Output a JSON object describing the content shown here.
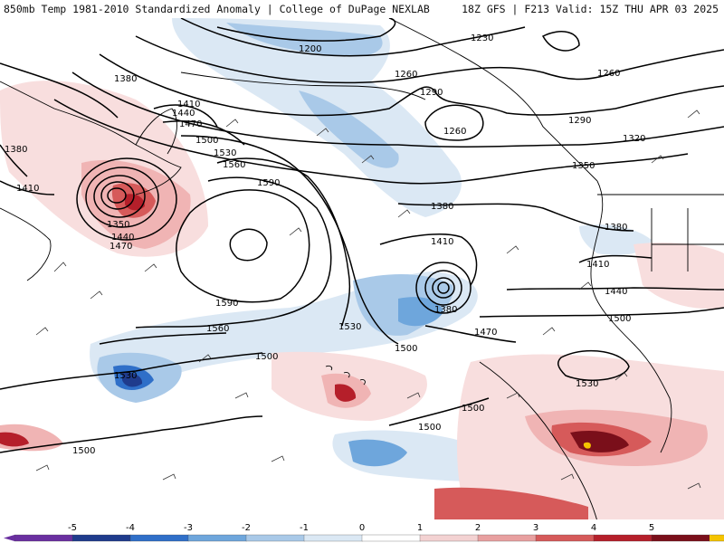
{
  "header": {
    "left_title": "850mb Temp 1981-2010 Standardized Anomaly | College of DuPage NEXLAB",
    "right_title": "18Z GFS | F213 Valid: 15Z THU APR 03 2025"
  },
  "contour_labels": {
    "l1200": "1200",
    "l1230": "1230",
    "l1260a": "1260",
    "l1260b": "1260",
    "l1260c": "1260",
    "l1290a": "1290",
    "l1290b": "1290",
    "l1320": "1320",
    "l1350": "1350",
    "l1380a": "1380",
    "l1380b": "1380",
    "l1380c": "1380",
    "l1380d": "1380",
    "l1380e": "1380",
    "l1410a": "1410",
    "l1410b": "1410",
    "l1410c": "1410",
    "l1410d": "1410",
    "l1440a": "1440",
    "l1440b": "1440",
    "l1440c": "1440",
    "l1470a": "1470",
    "l1470b": "1470",
    "l1470c": "1470",
    "l1500a": "1500",
    "l1500b": "1500",
    "l1500c": "1500",
    "l1500d": "1500",
    "l1500e": "1500",
    "l1500f": "1500",
    "l1500g": "1500",
    "l1530a": "1530",
    "l1530b": "1530",
    "l1530c": "1530",
    "l1530d": "1530",
    "l1560a": "1560",
    "l1560b": "1560",
    "l1590a": "1590",
    "l1590b": "1590",
    "l1350b": "1350"
  },
  "legend": {
    "ticks": [
      "-5",
      "-4",
      "-3",
      "-2",
      "-1",
      "0",
      "1",
      "2",
      "3",
      "4",
      "5"
    ],
    "colors": [
      "#6a2fa0",
      "#1f3b8c",
      "#2f6fc8",
      "#6ea6dc",
      "#a9c9e8",
      "#dbe8f4",
      "#ffffff",
      "#f3d2d2",
      "#e8a0a0",
      "#d65a5a",
      "#b51f2a",
      "#7a0f1a",
      "#f5c400"
    ]
  },
  "colors": {
    "cold1": "#dbe8f4",
    "cold2": "#a9c9e8",
    "cold3": "#6ea6dc",
    "cold4": "#2f6fc8",
    "cold5": "#1f3b8c",
    "warm1": "#f8dede",
    "warm2": "#f0b4b4",
    "warm3": "#d65a5a",
    "warm4": "#b51f2a",
    "warm5": "#7a0f1a"
  }
}
